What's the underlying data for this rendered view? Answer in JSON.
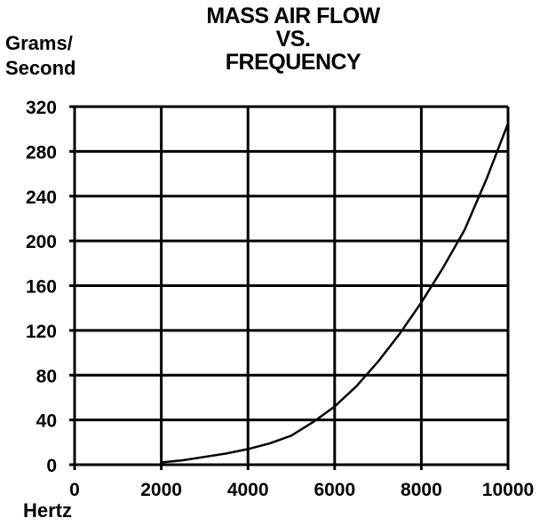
{
  "chart_data": {
    "type": "line",
    "title_lines": [
      "MASS AIR FLOW",
      "VS.",
      "FREQUENCY"
    ],
    "ylabel_lines": [
      "Grams/",
      "Second"
    ],
    "xlabel": "Hertz",
    "xlim": [
      0,
      10000
    ],
    "ylim": [
      0,
      320
    ],
    "x_ticks": [
      0,
      2000,
      4000,
      6000,
      8000,
      10000
    ],
    "y_ticks": [
      0,
      40,
      80,
      120,
      160,
      200,
      240,
      280,
      320
    ],
    "grid": true,
    "series": [
      {
        "x": [
          2000,
          2500,
          3000,
          3500,
          4000,
          4500,
          5000,
          5500,
          6000,
          6500,
          7000,
          7500,
          8000,
          8500,
          9000,
          9500,
          10000
        ],
        "y": [
          2,
          4,
          7,
          10,
          14,
          19,
          26,
          38,
          52,
          70,
          92,
          117,
          145,
          176,
          210,
          255,
          305
        ]
      }
    ]
  }
}
